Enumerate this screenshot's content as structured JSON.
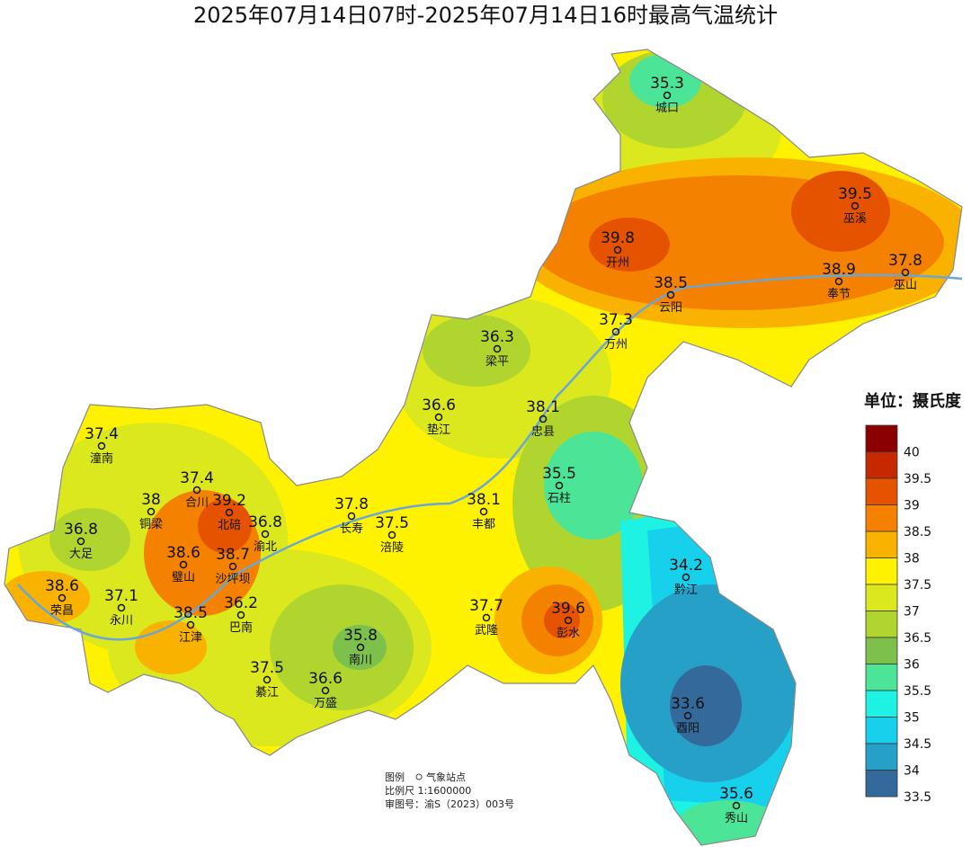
{
  "title": "2025年07月14日07时-2025年07月14日16时最高气温统计",
  "stations": [
    {
      "name": "城口",
      "value": 35.3
    },
    {
      "name": "巫溪",
      "value": 39.5
    },
    {
      "name": "开州",
      "value": 39.8
    },
    {
      "name": "巫山",
      "value": 37.8
    },
    {
      "name": "奉节",
      "value": 38.9
    },
    {
      "name": "云阳",
      "value": 38.5
    },
    {
      "name": "万州",
      "value": 37.3
    },
    {
      "name": "梁平",
      "value": 36.3
    },
    {
      "name": "垫江",
      "value": 36.6
    },
    {
      "name": "忠县",
      "value": 38.1
    },
    {
      "name": "潼南",
      "value": 37.4
    },
    {
      "name": "合川",
      "value": 37.4
    },
    {
      "name": "石柱",
      "value": 35.5
    },
    {
      "name": "铜梁",
      "value": 38
    },
    {
      "name": "北碚",
      "value": 39.2
    },
    {
      "name": "渝北",
      "value": 36.8
    },
    {
      "name": "长寿",
      "value": 37.8
    },
    {
      "name": "涪陵",
      "value": 37.5
    },
    {
      "name": "丰都",
      "value": 38.1
    },
    {
      "name": "大足",
      "value": 36.8
    },
    {
      "name": "璧山",
      "value": 38.6
    },
    {
      "name": "沙坪坝",
      "value": 38.7
    },
    {
      "name": "黔江",
      "value": 34.2
    },
    {
      "name": "荣昌",
      "value": 38.6
    },
    {
      "name": "永川",
      "value": 37.1
    },
    {
      "name": "巴南",
      "value": 36.2
    },
    {
      "name": "武隆",
      "value": 37.7
    },
    {
      "name": "彭水",
      "value": 39.6
    },
    {
      "name": "江津",
      "value": 38.5
    },
    {
      "name": "南川",
      "value": 35.8
    },
    {
      "name": "綦江",
      "value": 37.5
    },
    {
      "name": "万盛",
      "value": 36.6
    },
    {
      "name": "酉阳",
      "value": 33.6
    },
    {
      "name": "秀山",
      "value": 35.6
    }
  ],
  "legend": {
    "title": "单位：摄氏度",
    "ticks": [
      40,
      39.5,
      39,
      38.5,
      38,
      37.5,
      37,
      36.5,
      36,
      35.5,
      35,
      34.5,
      34,
      33.5
    ],
    "colors": [
      "#8b0000",
      "#c62800",
      "#e55300",
      "#f58100",
      "#f9b200",
      "#fef200",
      "#dbe81d",
      "#b0d52f",
      "#7dc14c",
      "#4ce597",
      "#1ef2e2",
      "#17d0ec",
      "#27a0c8",
      "#336a9b"
    ]
  },
  "notes": {
    "legend_label": "图例",
    "station_label": "气象站点",
    "scale": "比例尺   1:1600000",
    "approval": "审图号：渝S（2023）003号"
  }
}
